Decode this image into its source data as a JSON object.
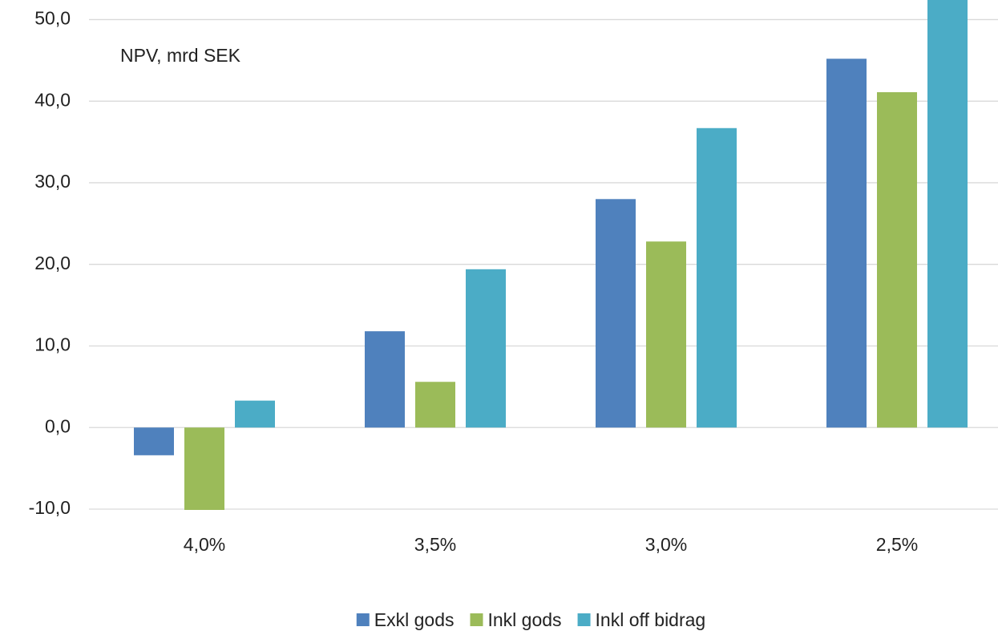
{
  "chart_data": {
    "type": "bar",
    "annotation": "NPV, mrd SEK",
    "categories": [
      "4,0%",
      "3,5%",
      "3,0%",
      "2,5%"
    ],
    "series": [
      {
        "name": "Exkl gods",
        "color": "#4f81bd",
        "values": [
          -3.4,
          11.8,
          28.0,
          45.2
        ]
      },
      {
        "name": "Inkl gods",
        "color": "#9bbb59",
        "values": [
          -10.1,
          5.6,
          22.8,
          41.1
        ]
      },
      {
        "name": "Inkl off bidrag",
        "color": "#4bacc6",
        "values": [
          3.3,
          19.4,
          36.7,
          55
        ]
      }
    ],
    "ylim": [
      -10,
      52.4
    ],
    "yticks": [
      {
        "value": -10,
        "label": "-10,0"
      },
      {
        "value": 0,
        "label": "0,0"
      },
      {
        "value": 10,
        "label": "10,0"
      },
      {
        "value": 20,
        "label": "20,0"
      },
      {
        "value": 30,
        "label": "30,0"
      },
      {
        "value": 40,
        "label": "40,0"
      },
      {
        "value": 50,
        "label": "50,0"
      }
    ],
    "grid": true,
    "legend": "bottom"
  }
}
